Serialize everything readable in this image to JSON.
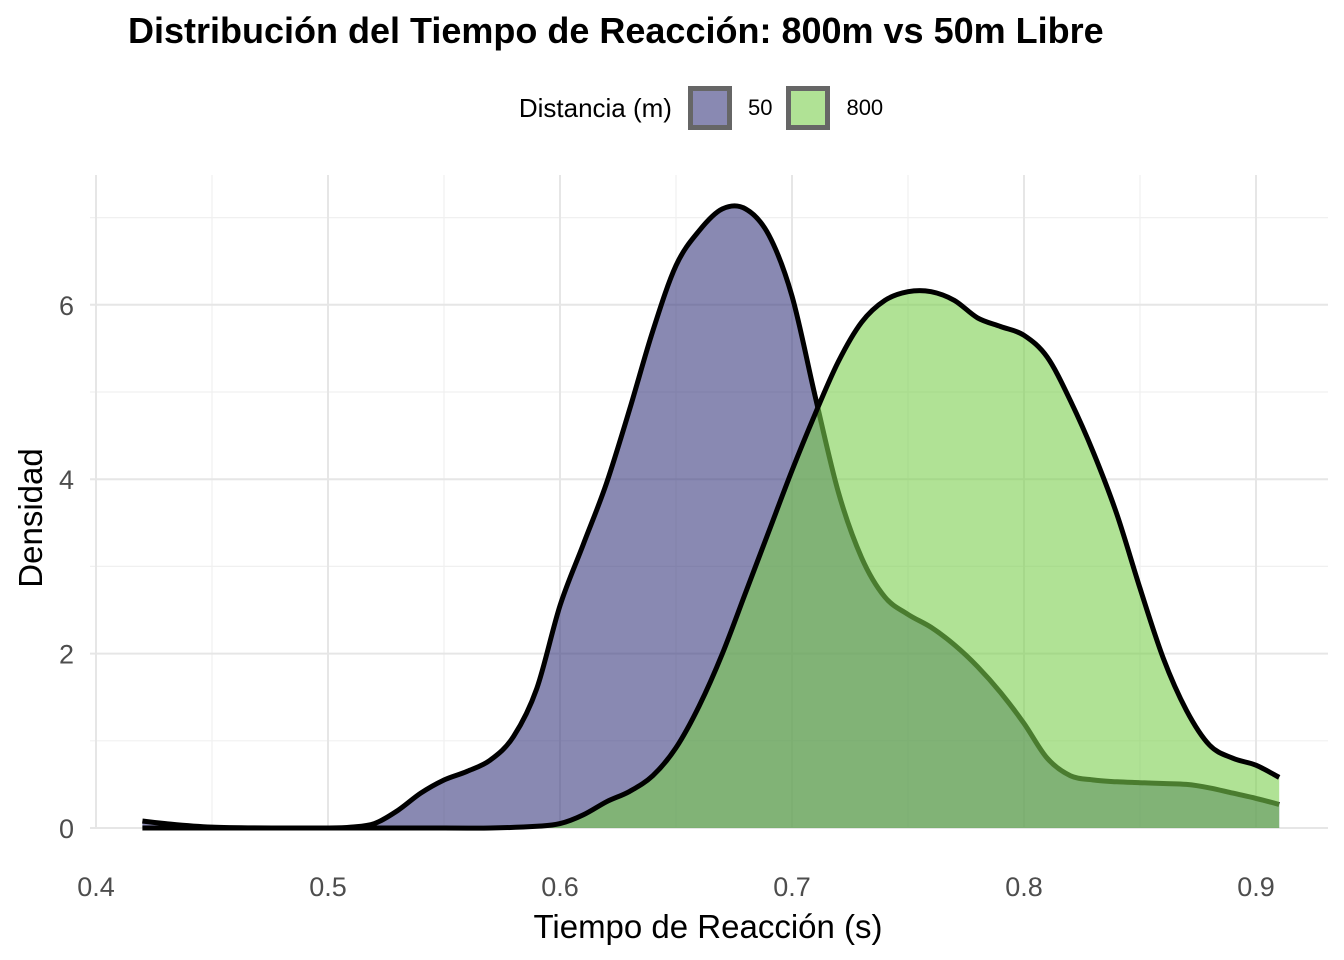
{
  "chart_data": {
    "type": "area",
    "title": "Distribución del Tiempo de Reacción: 800m vs 50m Libre",
    "xlabel": "Tiempo de Reacción (s)",
    "ylabel": "Densidad",
    "xlim": [
      0.4,
      0.92
    ],
    "ylim": [
      0,
      7.2
    ],
    "x_ticks": [
      "0.4",
      "0.5",
      "0.6",
      "0.7",
      "0.8",
      "0.9"
    ],
    "y_ticks": [
      "0",
      "2",
      "4",
      "6"
    ],
    "x_tick_values": [
      0.4,
      0.5,
      0.6,
      0.7,
      0.8,
      0.9
    ],
    "y_tick_values": [
      0,
      2,
      4,
      6
    ],
    "grid": true,
    "legend": {
      "title": "Distancia (m)",
      "position": "top"
    },
    "series": [
      {
        "name": "50",
        "color": "#3b3b7f",
        "x": [
          0.42,
          0.43,
          0.45,
          0.48,
          0.5,
          0.51,
          0.52,
          0.53,
          0.54,
          0.55,
          0.56,
          0.57,
          0.58,
          0.59,
          0.6,
          0.61,
          0.62,
          0.63,
          0.64,
          0.65,
          0.66,
          0.67,
          0.68,
          0.69,
          0.7,
          0.71,
          0.72,
          0.73,
          0.74,
          0.75,
          0.76,
          0.77,
          0.78,
          0.79,
          0.8,
          0.81,
          0.82,
          0.83,
          0.84,
          0.85,
          0.86,
          0.87,
          0.88,
          0.89,
          0.9,
          0.91
        ],
        "values": [
          0.08,
          0.05,
          0.01,
          0.0,
          0.0,
          0.01,
          0.05,
          0.2,
          0.4,
          0.55,
          0.65,
          0.78,
          1.05,
          1.6,
          2.55,
          3.25,
          3.95,
          4.8,
          5.7,
          6.45,
          6.85,
          7.1,
          7.1,
          6.8,
          6.1,
          4.95,
          3.85,
          3.1,
          2.65,
          2.45,
          2.3,
          2.1,
          1.85,
          1.55,
          1.2,
          0.8,
          0.6,
          0.55,
          0.53,
          0.52,
          0.51,
          0.5,
          0.46,
          0.4,
          0.34,
          0.27
        ]
      },
      {
        "name": "800",
        "color": "#7ccf4f",
        "x": [
          0.42,
          0.45,
          0.5,
          0.55,
          0.57,
          0.59,
          0.6,
          0.61,
          0.62,
          0.63,
          0.64,
          0.65,
          0.66,
          0.67,
          0.68,
          0.69,
          0.7,
          0.71,
          0.72,
          0.73,
          0.74,
          0.75,
          0.76,
          0.77,
          0.78,
          0.79,
          0.8,
          0.81,
          0.82,
          0.83,
          0.84,
          0.85,
          0.86,
          0.87,
          0.88,
          0.89,
          0.9,
          0.91
        ],
        "values": [
          0.0,
          0.0,
          0.0,
          0.0,
          0.0,
          0.02,
          0.05,
          0.15,
          0.3,
          0.42,
          0.6,
          0.92,
          1.4,
          2.0,
          2.7,
          3.4,
          4.1,
          4.75,
          5.35,
          5.8,
          6.05,
          6.15,
          6.15,
          6.05,
          5.85,
          5.75,
          5.65,
          5.4,
          4.9,
          4.3,
          3.6,
          2.75,
          1.95,
          1.35,
          0.95,
          0.8,
          0.72,
          0.58
        ]
      }
    ]
  }
}
